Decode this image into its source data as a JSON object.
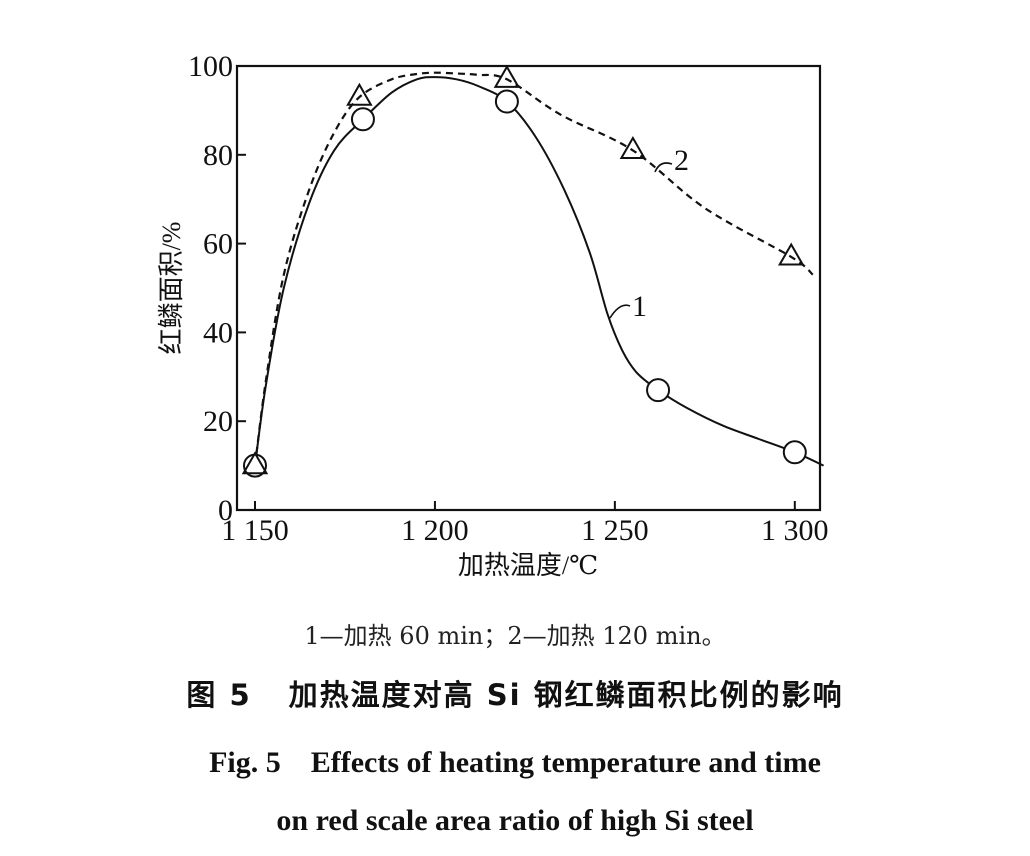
{
  "chart_data": {
    "type": "line",
    "title": "",
    "xlabel": "加热温度/℃",
    "ylabel": "红鳞面积/%",
    "xlim": [
      1145,
      1307
    ],
    "ylim": [
      0,
      100
    ],
    "x_ticks": [
      1150,
      1200,
      1250,
      1300
    ],
    "x_tick_labels": [
      "1 150",
      "1 200",
      "1 250",
      "1 300"
    ],
    "y_ticks": [
      0,
      20,
      40,
      60,
      80,
      100
    ],
    "y_tick_labels": [
      "0",
      "20",
      "40",
      "60",
      "80",
      "100"
    ],
    "grid": false,
    "series": [
      {
        "name": "1",
        "marker": "circle",
        "line_style": "solid",
        "points_x": [
          1150,
          1180,
          1220,
          1262,
          1300
        ],
        "points_y": [
          10,
          88,
          92,
          27,
          13
        ],
        "curve_x": [
          1150,
          1153,
          1158,
          1165,
          1172,
          1180,
          1188,
          1195,
          1200,
          1206,
          1212,
          1220,
          1228,
          1236,
          1243,
          1248,
          1252,
          1256,
          1262,
          1270,
          1280,
          1290,
          1300,
          1308
        ],
        "curve_y": [
          10,
          28,
          50,
          69,
          81,
          88,
          94,
          97,
          97.5,
          97,
          95.5,
          92,
          84,
          72,
          58,
          44,
          36,
          31,
          27,
          23,
          19,
          16,
          13,
          10
        ]
      },
      {
        "name": "2",
        "marker": "triangle",
        "line_style": "dashed",
        "points_x": [
          1150,
          1179,
          1220,
          1255,
          1299
        ],
        "points_y": [
          10,
          93,
          97,
          81,
          57
        ],
        "curve_x": [
          1150,
          1153,
          1158,
          1165,
          1172,
          1179,
          1188,
          1195,
          1200,
          1206,
          1212,
          1220,
          1235,
          1255,
          1275,
          1299,
          1305
        ],
        "curve_y": [
          10,
          29,
          53,
          72,
          85,
          93,
          97,
          98.2,
          98.5,
          98.3,
          98,
          97,
          89,
          81,
          68,
          57,
          53
        ]
      }
    ]
  },
  "caption": {
    "legend": "1—加热 60 min；2—加热 120 min。",
    "cn_fig_label": "图 5",
    "cn_title": "加热温度对高 Si 钢红鳞面积比例的影响",
    "en_fig_label": "Fig. 5",
    "en_line1": "Effects of heating temperature and time",
    "en_line2": "on red scale area ratio of high Si steel"
  }
}
